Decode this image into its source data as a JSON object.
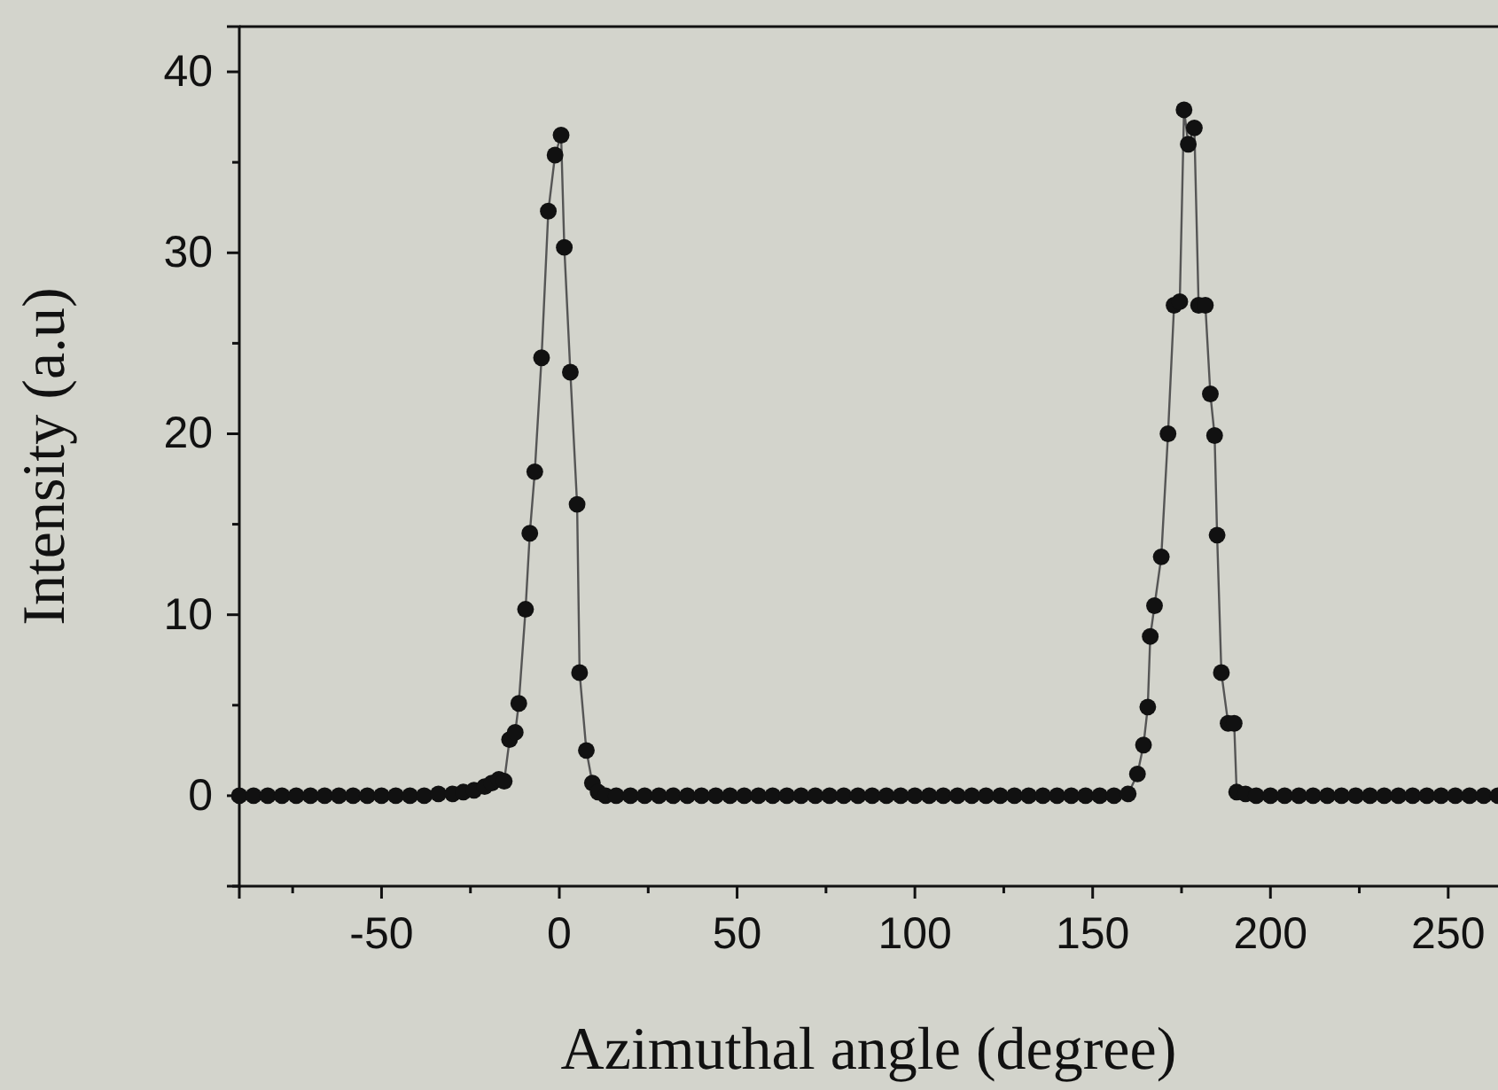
{
  "chart_data": {
    "type": "line",
    "xlabel": "Azimuthal angle (degree)",
    "ylabel": "Intensity (a.u)",
    "xlim": [
      -90,
      265
    ],
    "ylim": [
      -5,
      42.5
    ],
    "xticks": [
      {
        "value": -75,
        "label": null
      },
      -50,
      {
        "value": -25,
        "label": null
      },
      0,
      {
        "value": 25,
        "label": null
      },
      50,
      {
        "value": 75,
        "label": null
      },
      100,
      {
        "value": 125,
        "label": null
      },
      150,
      {
        "value": 175,
        "label": null
      },
      200,
      {
        "value": 225,
        "label": null
      },
      250
    ],
    "yticks": [
      {
        "value": -5,
        "label": null
      },
      0,
      {
        "value": 5,
        "label": null
      },
      10,
      {
        "value": 15,
        "label": null
      },
      20,
      {
        "value": 25,
        "label": null
      },
      30,
      {
        "value": 35,
        "label": null
      },
      40
    ],
    "marker": "circle",
    "line_style": "solid",
    "series": [
      {
        "color": "#111111",
        "x": [
          -90,
          -86,
          -82,
          -78,
          -74,
          -70,
          -66,
          -62,
          -58,
          -54,
          -50,
          -46,
          -42,
          -38,
          -34,
          -30,
          -27,
          -24,
          -21,
          -19,
          -17,
          -15.5,
          -14,
          -12.4,
          -11.4,
          -9.5,
          -8.3,
          -6.9,
          -5,
          -3.1,
          -1.2,
          0.5,
          1.4,
          3.1,
          5,
          5.7,
          7.6,
          9.3,
          10.9,
          13,
          16,
          20,
          24,
          28,
          32,
          36,
          40,
          44,
          48,
          52,
          56,
          60,
          64,
          68,
          72,
          76,
          80,
          84,
          88,
          92,
          96,
          100,
          104,
          108,
          112,
          116,
          120,
          124,
          128,
          132,
          136,
          140,
          144,
          148,
          152,
          156,
          160,
          162.6,
          164.3,
          165.5,
          166.2,
          167.4,
          169.3,
          171.2,
          172.9,
          174.5,
          175.7,
          176.9,
          178.6,
          179.8,
          181.7,
          183.1,
          184.3,
          185,
          186.2,
          188.1,
          189.8,
          190.5,
          193,
          196,
          200,
          204,
          208,
          212,
          216,
          220,
          224,
          228,
          232,
          236,
          240,
          244,
          248,
          252,
          256,
          260,
          264
        ],
        "values": [
          0,
          0,
          0,
          0,
          0,
          0,
          0,
          0,
          0,
          0,
          0,
          0,
          0,
          0,
          0.1,
          0.1,
          0.2,
          0.3,
          0.5,
          0.7,
          0.9,
          0.8,
          3.1,
          3.5,
          5.1,
          10.3,
          14.5,
          17.9,
          24.2,
          32.3,
          35.4,
          36.5,
          30.3,
          23.4,
          16.1,
          6.8,
          2.5,
          0.7,
          0.2,
          0,
          0,
          0,
          0,
          0,
          0,
          0,
          0,
          0,
          0,
          0,
          0,
          0,
          0,
          0,
          0,
          0,
          0,
          0,
          0,
          0,
          0,
          0,
          0,
          0,
          0,
          0,
          0,
          0,
          0,
          0,
          0,
          0,
          0,
          0,
          0,
          0,
          0.1,
          1.2,
          2.8,
          4.9,
          8.8,
          10.5,
          13.2,
          20,
          27.1,
          27.3,
          37.9,
          36,
          36.9,
          27.1,
          27.1,
          22.2,
          19.9,
          14.4,
          6.8,
          4,
          4,
          0.2,
          0.1,
          0,
          0,
          0,
          0,
          0,
          0,
          0,
          0,
          0,
          0,
          0,
          0,
          0,
          0,
          0,
          0,
          0,
          0
        ]
      }
    ]
  }
}
